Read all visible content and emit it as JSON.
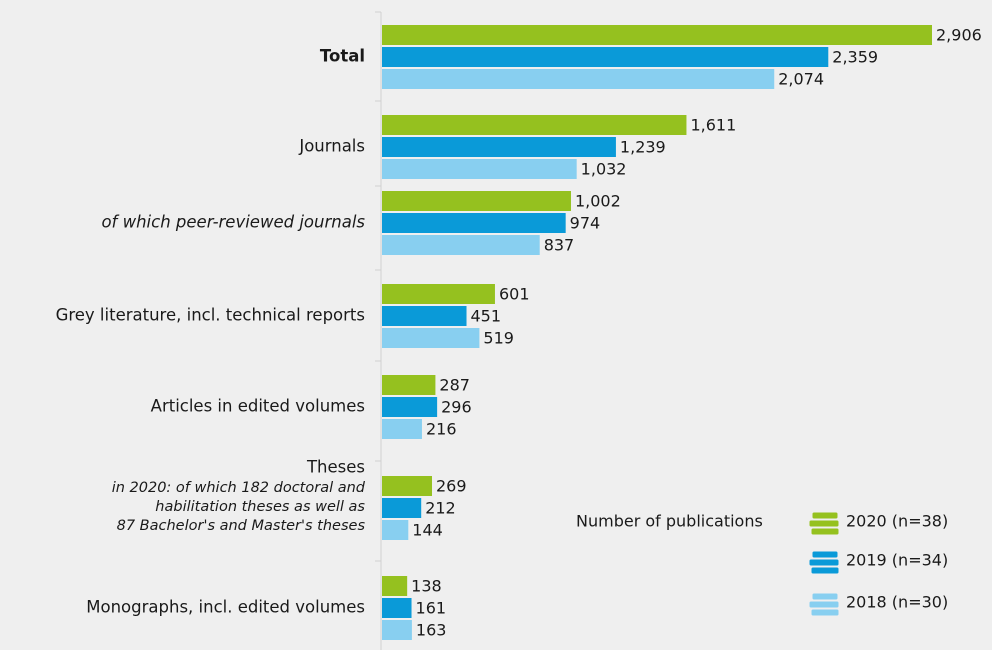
{
  "chart_data": {
    "type": "bar",
    "orientation": "horizontal",
    "categories": [
      "Total",
      "Journals",
      "of which peer-reviewed journals",
      "Grey literature, incl. technical reports",
      "Articles in edited volumes",
      "Theses",
      "Monographs, incl. edited volumes"
    ],
    "category_styles": [
      "bold",
      "normal",
      "italic",
      "normal",
      "normal",
      "normal",
      "normal"
    ],
    "annotations": [
      "in 2020: of which 182 doctoral and",
      "habilitation theses as well as",
      "87 Bachelor's and Master's theses"
    ],
    "legend_title": "Number of publications",
    "series": [
      {
        "name": "2020 (n=38)",
        "color": "#95c11f",
        "values": [
          2906,
          1611,
          1002,
          601,
          287,
          269,
          138
        ],
        "value_labels": [
          "2,906",
          "1,611",
          "1,002",
          "601",
          "287",
          "269",
          "138"
        ]
      },
      {
        "name": "2019 (n=34)",
        "color": "#0a9ad8",
        "values": [
          2359,
          1239,
          974,
          451,
          296,
          212,
          161
        ],
        "value_labels": [
          "2,359",
          "1,239",
          "974",
          "451",
          "296",
          "212",
          "161"
        ]
      },
      {
        "name": "2018 (n=30)",
        "color": "#88cff0",
        "values": [
          2074,
          1032,
          837,
          519,
          216,
          144,
          163
        ],
        "value_labels": [
          "2,074",
          "1,032",
          "837",
          "519",
          "216",
          "144",
          "163"
        ]
      }
    ]
  }
}
